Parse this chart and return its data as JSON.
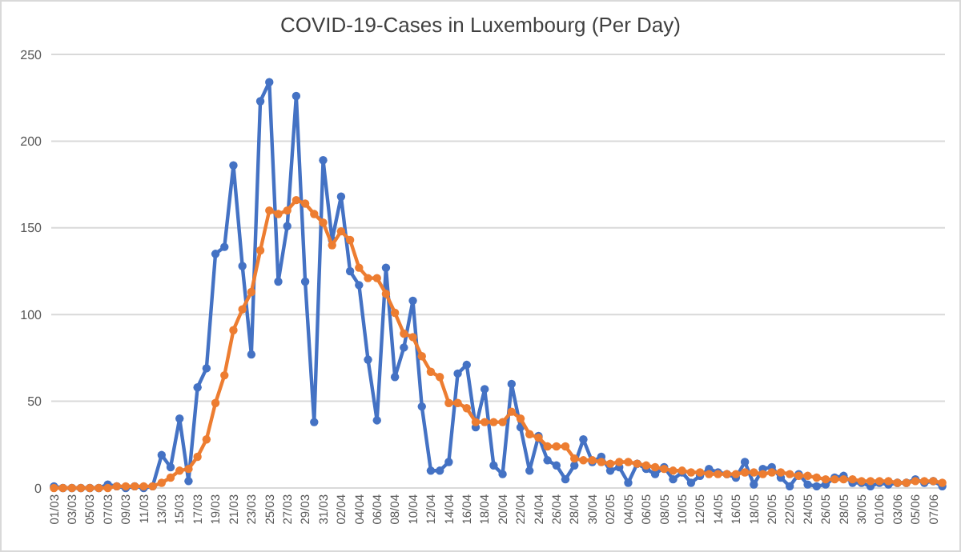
{
  "chart_data": {
    "type": "line",
    "title": "COVID-19-Cases in Luxembourg (Per Day)",
    "categories": [
      "01/03",
      null,
      "03/03",
      null,
      "05/03",
      null,
      "07/03",
      null,
      "09/03",
      null,
      "11/03",
      null,
      "13/03",
      null,
      "15/03",
      null,
      "17/03",
      null,
      "19/03",
      null,
      "21/03",
      null,
      "23/03",
      null,
      "25/03",
      null,
      "27/03",
      null,
      "29/03",
      null,
      "31/03",
      null,
      "02/04",
      null,
      "04/04",
      null,
      "06/04",
      null,
      "08/04",
      null,
      "10/04",
      null,
      "12/04",
      null,
      "14/04",
      null,
      "16/04",
      null,
      "18/04",
      null,
      "20/04",
      null,
      "22/04",
      null,
      "24/04",
      null,
      "26/04",
      null,
      "28/04",
      null,
      "30/04",
      null,
      "02/05",
      null,
      "04/05",
      null,
      "06/05",
      null,
      "08/05",
      null,
      "10/05",
      null,
      "12/05",
      null,
      "14/05",
      null,
      "16/05",
      null,
      "18/05",
      null,
      "20/05",
      null,
      "22/05",
      null,
      "24/05",
      null,
      "26/05",
      null,
      "28/05",
      null,
      "30/05",
      null,
      "01/06",
      null,
      "03/06",
      null,
      "05/06",
      null,
      "07/06",
      null
    ],
    "series": [
      {
        "color": "#4472c4",
        "values": [
          1,
          0,
          0,
          0,
          0,
          0,
          2,
          1,
          0,
          1,
          0,
          1,
          19,
          12,
          40,
          4,
          58,
          69,
          135,
          139,
          186,
          128,
          77,
          223,
          234,
          119,
          151,
          226,
          119,
          38,
          189,
          143,
          168,
          125,
          117,
          74,
          39,
          127,
          64,
          81,
          108,
          47,
          10,
          10,
          15,
          66,
          71,
          35,
          57,
          13,
          8,
          60,
          35,
          10,
          30,
          16,
          13,
          5,
          13,
          28,
          15,
          18,
          10,
          12,
          3,
          14,
          11,
          8,
          12,
          5,
          9,
          3,
          7,
          11,
          9,
          8,
          6,
          15,
          2,
          11,
          12,
          6,
          1,
          8,
          2,
          1,
          2,
          6,
          7,
          3,
          3,
          1,
          3,
          2,
          3,
          3,
          5,
          3,
          4,
          1
        ]
      },
      {
        "color": "#ed7d31",
        "values": [
          0,
          0,
          0,
          0,
          0,
          0,
          0,
          1,
          1,
          1,
          1,
          1,
          3,
          6,
          10,
          11,
          18,
          28,
          49,
          65,
          91,
          103,
          113,
          137,
          160,
          158,
          160,
          166,
          164,
          158,
          153,
          140,
          148,
          143,
          127,
          121,
          121,
          112,
          101,
          89,
          87,
          76,
          67,
          64,
          49,
          49,
          46,
          38,
          38,
          38,
          38,
          44,
          40,
          31,
          29,
          24,
          24,
          24,
          17,
          16,
          16,
          15,
          14,
          15,
          15,
          14,
          13,
          12,
          11,
          10,
          10,
          9,
          9,
          8,
          8,
          8,
          8,
          9,
          9,
          8,
          9,
          9,
          8,
          7,
          7,
          6,
          5,
          5,
          5,
          5,
          4,
          4,
          4,
          4,
          3,
          3,
          4,
          4,
          4,
          3
        ]
      }
    ],
    "ylim": [
      0,
      250
    ],
    "yticks": [
      0,
      50,
      100,
      150,
      200,
      250
    ],
    "grid": "y",
    "marker": "circle",
    "line_style": "solid"
  }
}
